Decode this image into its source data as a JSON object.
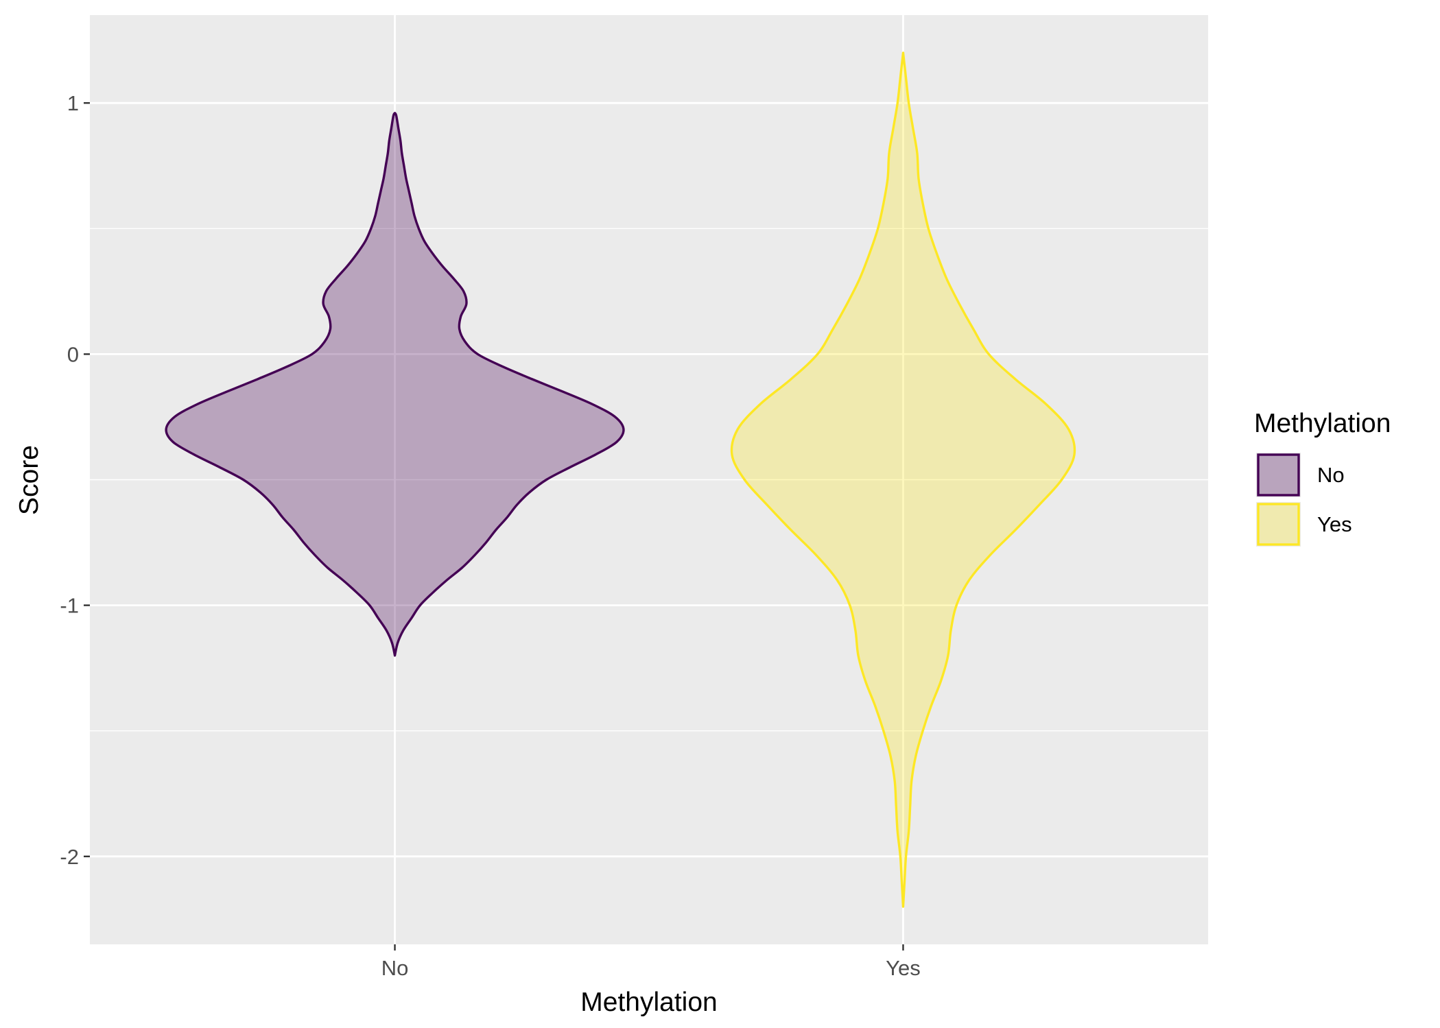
{
  "chart_data": {
    "type": "violin",
    "title": "",
    "xlabel": "Methylation",
    "ylabel": "Score",
    "ylim": [
      -2.35,
      1.35
    ],
    "y_ticks": [
      -2,
      -1,
      0,
      1
    ],
    "y_tick_labels": [
      "-2",
      "-1",
      "0",
      "1"
    ],
    "categories": [
      "No",
      "Yes"
    ],
    "grid": true,
    "legend": {
      "title": "Methylation",
      "placement": "right",
      "entries": [
        "No",
        "Yes"
      ]
    },
    "series": [
      {
        "name": "No",
        "fill": "#440154",
        "stroke": "#440154",
        "fill_opacity": 0.3,
        "density": [
          [
            -1.2,
            0.0
          ],
          [
            -1.15,
            0.02
          ],
          [
            -1.1,
            0.06
          ],
          [
            -1.05,
            0.12
          ],
          [
            -1.0,
            0.18
          ],
          [
            -0.95,
            0.27
          ],
          [
            -0.9,
            0.37
          ],
          [
            -0.85,
            0.48
          ],
          [
            -0.8,
            0.57
          ],
          [
            -0.75,
            0.65
          ],
          [
            -0.7,
            0.72
          ],
          [
            -0.65,
            0.8
          ],
          [
            -0.6,
            0.87
          ],
          [
            -0.55,
            0.96
          ],
          [
            -0.5,
            1.08
          ],
          [
            -0.45,
            1.25
          ],
          [
            -0.4,
            1.43
          ],
          [
            -0.35,
            1.58
          ],
          [
            -0.3,
            1.63
          ],
          [
            -0.25,
            1.57
          ],
          [
            -0.2,
            1.41
          ],
          [
            -0.15,
            1.2
          ],
          [
            -0.1,
            0.98
          ],
          [
            -0.05,
            0.77
          ],
          [
            0.0,
            0.59
          ],
          [
            0.05,
            0.5
          ],
          [
            0.1,
            0.46
          ],
          [
            0.15,
            0.47
          ],
          [
            0.2,
            0.51
          ],
          [
            0.25,
            0.49
          ],
          [
            0.3,
            0.42
          ],
          [
            0.35,
            0.34
          ],
          [
            0.4,
            0.27
          ],
          [
            0.45,
            0.21
          ],
          [
            0.5,
            0.17
          ],
          [
            0.55,
            0.14
          ],
          [
            0.6,
            0.12
          ],
          [
            0.65,
            0.1
          ],
          [
            0.7,
            0.08
          ],
          [
            0.75,
            0.065
          ],
          [
            0.8,
            0.05
          ],
          [
            0.85,
            0.04
          ],
          [
            0.9,
            0.025
          ],
          [
            0.95,
            0.01
          ],
          [
            0.96,
            0.0
          ]
        ]
      },
      {
        "name": "Yes",
        "fill": "#FDE725",
        "stroke": "#FDE725",
        "fill_opacity": 0.3,
        "density": [
          [
            -2.2,
            0.0
          ],
          [
            -2.1,
            0.01
          ],
          [
            -2.0,
            0.02
          ],
          [
            -1.9,
            0.04
          ],
          [
            -1.8,
            0.05
          ],
          [
            -1.7,
            0.06
          ],
          [
            -1.6,
            0.09
          ],
          [
            -1.5,
            0.14
          ],
          [
            -1.4,
            0.2
          ],
          [
            -1.3,
            0.27
          ],
          [
            -1.2,
            0.32
          ],
          [
            -1.1,
            0.34
          ],
          [
            -1.0,
            0.38
          ],
          [
            -0.9,
            0.47
          ],
          [
            -0.8,
            0.62
          ],
          [
            -0.7,
            0.8
          ],
          [
            -0.6,
            0.97
          ],
          [
            -0.5,
            1.13
          ],
          [
            -0.4,
            1.22
          ],
          [
            -0.3,
            1.18
          ],
          [
            -0.2,
            1.02
          ],
          [
            -0.1,
            0.8
          ],
          [
            0.0,
            0.61
          ],
          [
            0.1,
            0.5
          ],
          [
            0.2,
            0.4
          ],
          [
            0.3,
            0.31
          ],
          [
            0.4,
            0.24
          ],
          [
            0.5,
            0.18
          ],
          [
            0.6,
            0.14
          ],
          [
            0.7,
            0.11
          ],
          [
            0.8,
            0.1
          ],
          [
            0.9,
            0.07
          ],
          [
            1.0,
            0.04
          ],
          [
            1.1,
            0.02
          ],
          [
            1.2,
            0.0
          ]
        ]
      }
    ]
  }
}
